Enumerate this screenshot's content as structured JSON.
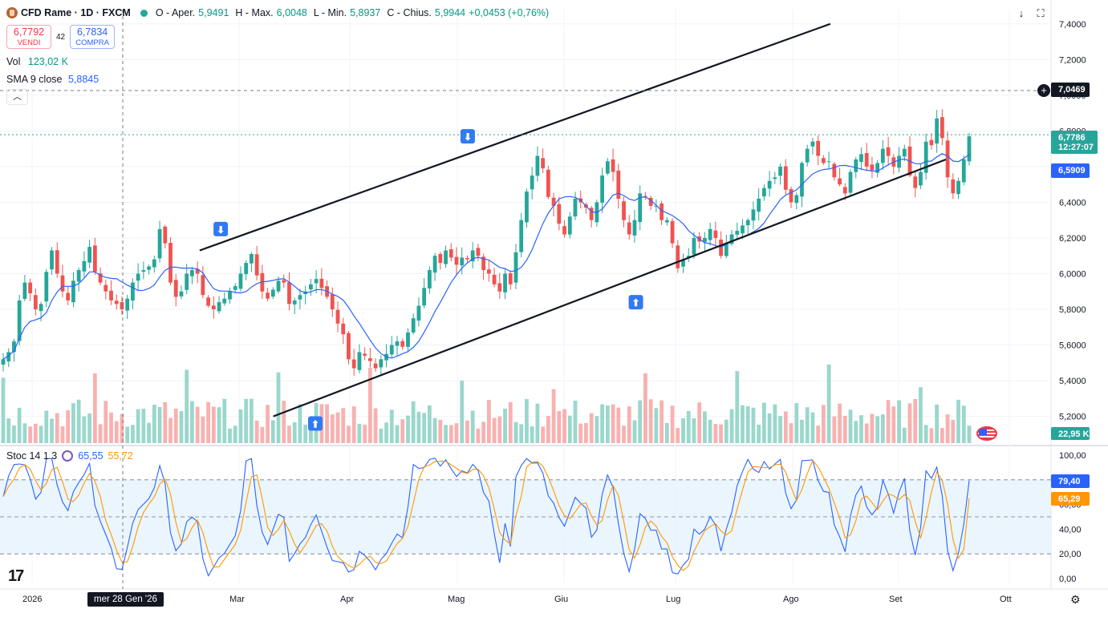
{
  "header": {
    "symbol_title": "CFD Rame · 1D · FXCM",
    "open_label": "O - Aper.",
    "open_value": "5,9491",
    "high_label": "H - Max.",
    "high_value": "6,0048",
    "low_label": "L - Min.",
    "low_value": "5,8937",
    "close_label": "C - Chius.",
    "close_value": "5,9944",
    "change_value": "+0,0453 (+0,76%)"
  },
  "trade": {
    "sell_price": "6,7792",
    "sell_label": "VENDI",
    "spread": "42",
    "buy_price": "6,7834",
    "buy_label": "COMPRA"
  },
  "volume": {
    "label": "Vol",
    "value": "123,02 K",
    "last_badge": "22,95 K"
  },
  "sma": {
    "label": "SMA 9 close",
    "value": "5,8845",
    "badge": "6,5909"
  },
  "stoch": {
    "label": "Stoc 14 1 3",
    "k_value": "65,55",
    "d_value": "55,72",
    "k_badge": "79,40",
    "d_badge": "65,29"
  },
  "price_badges": {
    "crosshair_price": "7,0469",
    "last_price": "6,7786",
    "countdown": "12:27:07"
  },
  "crosshair_date": "mer 28 Gen '26",
  "colors": {
    "up": "#26a69a",
    "down": "#ef5350",
    "sma": "#2962ff",
    "stoch_k": "#2962ff",
    "stoch_d": "#ff9800",
    "band": "#e3f2fd"
  },
  "chart_data": {
    "type": "candlestick",
    "x_axis_labels": [
      "2026",
      "Mar",
      "Apr",
      "Mag",
      "Giu",
      "Lug",
      "Ago",
      "Set",
      "Ott"
    ],
    "price_axis_labels": [
      "7,4000",
      "7,2000",
      "7,0000",
      "6,8000",
      "6,6000",
      "6,4000",
      "6,2000",
      "6,0000",
      "5,8000",
      "5,6000",
      "5,4000",
      "5,2000"
    ],
    "stoch_axis_labels": [
      "100,00",
      "80,00",
      "60,00",
      "40,00",
      "20,00",
      "0,00"
    ],
    "price_range": [
      5.05,
      7.48
    ],
    "stoch_range": [
      0,
      100
    ],
    "stoch_band": [
      20,
      80
    ],
    "close_series": [
      5.52,
      5.56,
      5.62,
      5.85,
      5.95,
      5.89,
      5.8,
      5.83,
      6.01,
      6.13,
      6.0,
      5.9,
      5.85,
      5.96,
      6.02,
      6.07,
      6.15,
      6.01,
      5.95,
      5.9,
      5.85,
      5.83,
      5.8,
      5.86,
      5.95,
      6.0,
      6.02,
      6.04,
      6.08,
      6.25,
      6.17,
      5.95,
      5.87,
      5.9,
      6.0,
      6.02,
      6.0,
      5.88,
      5.82,
      5.8,
      5.84,
      5.86,
      5.9,
      5.93,
      6.0,
      6.06,
      6.11,
      5.99,
      5.9,
      5.86,
      5.91,
      5.96,
      5.95,
      5.83,
      5.85,
      5.88,
      5.9,
      5.94,
      5.97,
      5.92,
      5.87,
      5.8,
      5.72,
      5.66,
      5.52,
      5.47,
      5.56,
      5.54,
      5.51,
      5.47,
      5.52,
      5.55,
      5.6,
      5.62,
      5.59,
      5.67,
      5.75,
      5.82,
      5.92,
      6.02,
      6.1,
      6.06,
      6.13,
      6.09,
      6.05,
      6.09,
      6.08,
      6.13,
      6.1,
      6.02,
      6.0,
      5.94,
      5.9,
      6.0,
      5.94,
      6.12,
      6.3,
      6.46,
      6.55,
      6.66,
      6.59,
      6.43,
      6.38,
      6.28,
      6.22,
      6.32,
      6.42,
      6.4,
      6.37,
      6.3,
      6.4,
      6.55,
      6.63,
      6.57,
      6.42,
      6.3,
      6.22,
      6.3,
      6.45,
      6.43,
      6.38,
      6.38,
      6.3,
      6.3,
      6.17,
      6.03,
      6.08,
      6.1,
      6.2,
      6.18,
      6.2,
      6.25,
      6.2,
      6.1,
      6.17,
      6.22,
      6.24,
      6.27,
      6.3,
      6.36,
      6.42,
      6.48,
      6.52,
      6.54,
      6.6,
      6.47,
      6.4,
      6.44,
      6.62,
      6.7,
      6.74,
      6.66,
      6.62,
      6.63,
      6.54,
      6.5,
      6.45,
      6.57,
      6.64,
      6.67,
      6.6,
      6.58,
      6.62,
      6.7,
      6.66,
      6.6,
      6.66,
      6.7,
      6.55,
      6.48,
      6.57,
      6.74,
      6.72,
      6.87,
      6.76,
      6.54,
      6.45,
      6.52,
      6.64,
      6.77
    ],
    "stoch_k_final": 79.4,
    "stoch_d_final": 65.29,
    "annotations": [
      {
        "type": "channel_upper",
        "from": [
          0.19,
          6.13
        ],
        "to": [
          0.79,
          7.4
        ]
      },
      {
        "type": "channel_lower",
        "from": [
          0.26,
          5.2
        ],
        "to": [
          0.9,
          6.64
        ]
      },
      {
        "type": "marker_down",
        "at": [
          0.21,
          6.25
        ]
      },
      {
        "type": "marker_down",
        "at": [
          0.445,
          6.77
        ]
      },
      {
        "type": "marker_up",
        "at": [
          0.3,
          5.16
        ]
      },
      {
        "type": "marker_up",
        "at": [
          0.605,
          5.84
        ]
      }
    ]
  }
}
